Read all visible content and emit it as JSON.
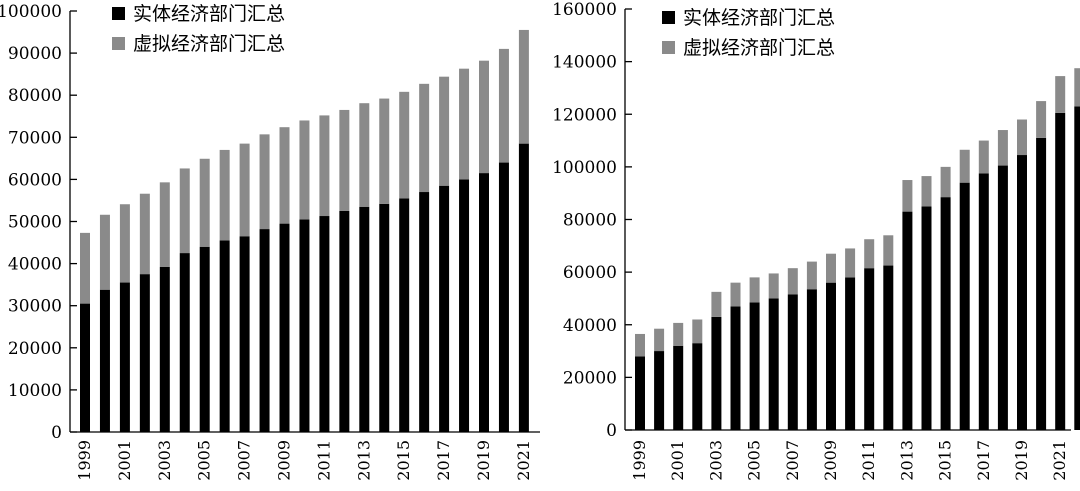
{
  "chart_data": [
    {
      "type": "bar",
      "stacked": true,
      "years": [
        "1999",
        "2000",
        "2001",
        "2002",
        "2003",
        "2004",
        "2005",
        "2006",
        "2007",
        "2008",
        "2009",
        "2010",
        "2011",
        "2012",
        "2013",
        "2014",
        "2015",
        "2016",
        "2017",
        "2018",
        "2019",
        "2020",
        "2021"
      ],
      "tick_labels": [
        "1999",
        "2001",
        "2003",
        "2005",
        "2007",
        "2009",
        "2011",
        "2013",
        "2015",
        "2017",
        "2019",
        "2021"
      ],
      "y_ticks": [
        "0",
        "10000",
        "20000",
        "30000",
        "40000",
        "50000",
        "60000",
        "70000",
        "80000",
        "90000",
        "100000"
      ],
      "ylim": [
        0,
        100000
      ],
      "legend_position": "top-left",
      "series": [
        {
          "name": "实体经济部门汇总",
          "color": "#000000",
          "values": [
            30500,
            33800,
            35500,
            37500,
            39200,
            42500,
            44000,
            45500,
            46500,
            48200,
            49500,
            50500,
            51300,
            52500,
            53500,
            54200,
            55500,
            57000,
            58500,
            60000,
            61500,
            64000,
            68500
          ]
        },
        {
          "name": "虚拟经济部门汇总",
          "color": "#8a8a8a",
          "values": [
            16800,
            17800,
            18600,
            19100,
            20100,
            20100,
            20900,
            21500,
            22000,
            22500,
            22900,
            23500,
            23900,
            24000,
            24600,
            25000,
            25300,
            25700,
            25900,
            26300,
            26700,
            27000,
            27000
          ]
        }
      ]
    },
    {
      "type": "bar",
      "stacked": true,
      "years": [
        "1999",
        "2000",
        "2001",
        "2002",
        "2003",
        "2004",
        "2005",
        "2006",
        "2007",
        "2008",
        "2009",
        "2010",
        "2011",
        "2012",
        "2013",
        "2014",
        "2015",
        "2016",
        "2017",
        "2018",
        "2019",
        "2020",
        "2021",
        "2022"
      ],
      "tick_labels": [
        "1999",
        "2001",
        "2003",
        "2005",
        "2007",
        "2009",
        "2011",
        "2013",
        "2015",
        "2017",
        "2019",
        "2021"
      ],
      "y_ticks": [
        "0",
        "20000",
        "40000",
        "60000",
        "80000",
        "100000",
        "120000",
        "140000",
        "160000"
      ],
      "ylim": [
        0,
        160000
      ],
      "legend_position": "top-left",
      "series": [
        {
          "name": "实体经济部门汇总",
          "color": "#000000",
          "values": [
            28000,
            30000,
            32000,
            33000,
            43000,
            47000,
            48500,
            50000,
            51500,
            53500,
            56000,
            58000,
            61500,
            62500,
            83000,
            85000,
            88500,
            94000,
            97500,
            100500,
            104500,
            111000,
            120500,
            123000
          ]
        },
        {
          "name": "虚拟经济部门汇总",
          "color": "#8a8a8a",
          "values": [
            8500,
            8500,
            8700,
            9000,
            9500,
            9000,
            9500,
            9500,
            10000,
            10500,
            11000,
            11000,
            11000,
            11500,
            12000,
            11500,
            11500,
            12500,
            12500,
            13500,
            13500,
            14000,
            14000,
            14500
          ]
        }
      ]
    }
  ]
}
